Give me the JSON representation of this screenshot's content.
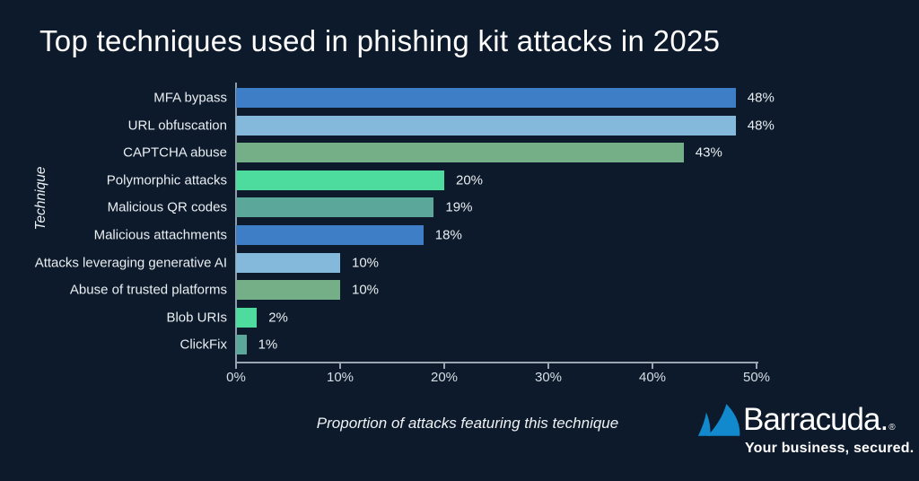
{
  "page": {
    "background": "#0d1a2b"
  },
  "title": "Top techniques used in phishing kit attacks in 2025",
  "chart_data": {
    "type": "bar",
    "orientation": "horizontal",
    "title": "Top techniques used in phishing kit attacks in 2025",
    "categories": [
      "MFA bypass",
      "URL obfuscation",
      "CAPTCHA abuse",
      "Polymorphic attacks",
      "Malicious QR codes",
      "Malicious attachments",
      "Attacks leveraging generative AI",
      "Abuse of trusted platforms",
      "Blob URIs",
      "ClickFix"
    ],
    "values": [
      48,
      48,
      43,
      20,
      19,
      18,
      10,
      10,
      2,
      1
    ],
    "value_labels": [
      "48%",
      "48%",
      "43%",
      "20%",
      "19%",
      "18%",
      "10%",
      "10%",
      "2%",
      "1%"
    ],
    "bar_colors": [
      "#3d7ec7",
      "#85b9dc",
      "#75af88",
      "#4ddc9d",
      "#5ba79a",
      "#3d7ec7",
      "#85b9dc",
      "#75af88",
      "#4ddc9d",
      "#5ba79a"
    ],
    "xlabel": "Proportion of attacks featuring this technique",
    "ylabel": "Technique",
    "xlim": [
      0,
      50
    ],
    "x_ticks": [
      "0%",
      "10%",
      "20%",
      "30%",
      "40%",
      "50%"
    ],
    "x_tick_values": [
      0,
      10,
      20,
      30,
      40,
      50
    ],
    "grid": false,
    "legend": false,
    "axis_color": "#9aa7b3",
    "text_color": "#e9eef2"
  },
  "branding": {
    "wordmark": "Barracuda.",
    "registered_mark": "®",
    "tagline": "Your business, secured.",
    "logo_color": "#1289cc"
  }
}
